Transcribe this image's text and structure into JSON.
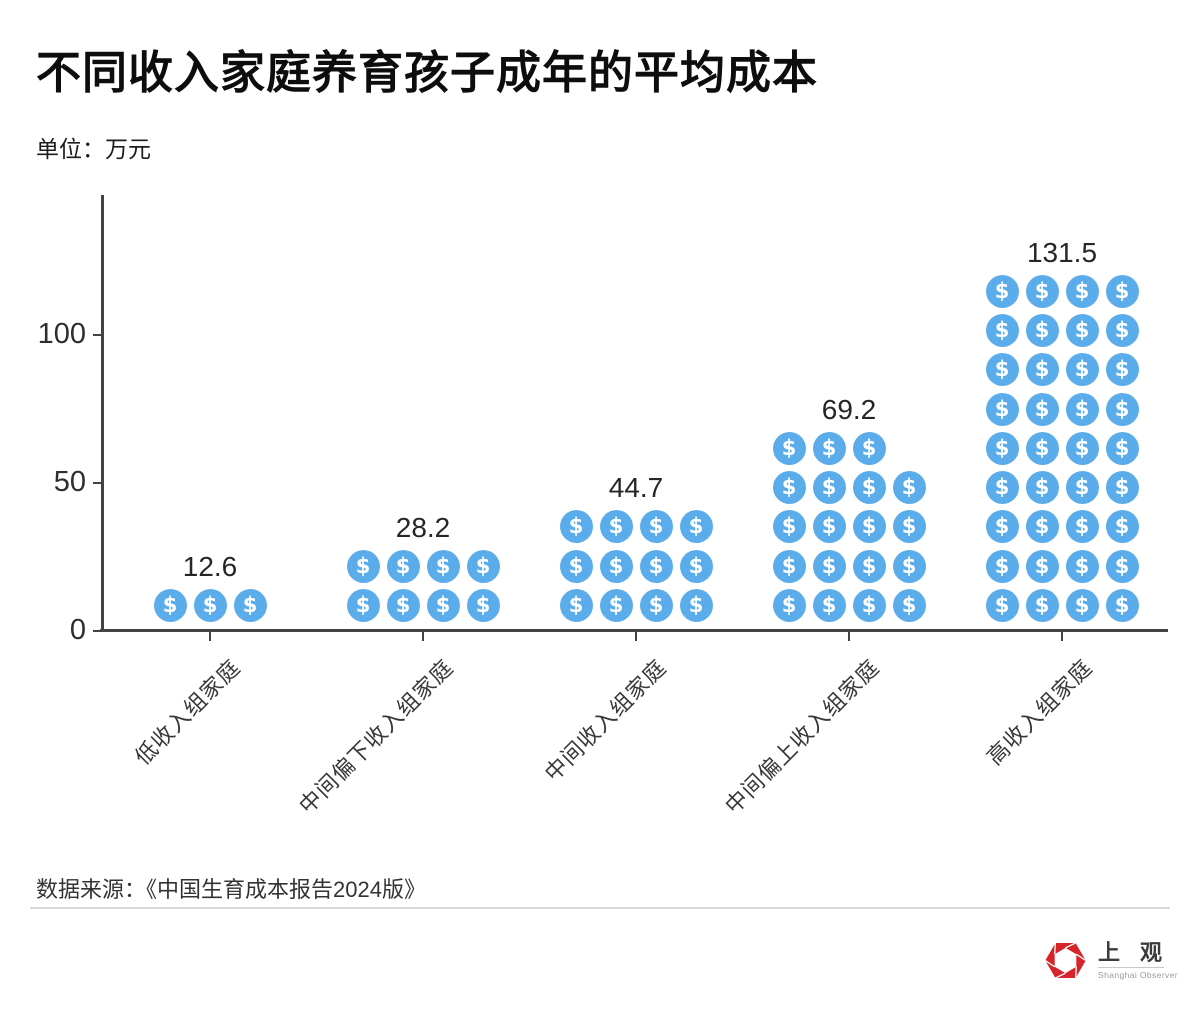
{
  "header": {
    "title": "不同收入家庭养育孩子成年的平均成本",
    "unit_label": "单位：万元"
  },
  "footer": {
    "source_label": "数据来源：《中国生育成本报告2024版》",
    "logo": {
      "name": "上观",
      "subtitle": "Shanghai Observer",
      "brand_color": "#D5252B"
    }
  },
  "chart_data": {
    "type": "bar",
    "variant": "pictogram",
    "title": "不同收入家庭养育孩子成年的平均成本",
    "unit": "万元",
    "categories": [
      "低收入组家庭",
      "中间偏下收入组家庭",
      "中间收入组家庭",
      "中间偏上收入组家庭",
      "高收入组家庭"
    ],
    "values": [
      12.6,
      28.2,
      44.7,
      69.2,
      131.5
    ],
    "value_labels": [
      "12.6",
      "28.2",
      "44.7",
      "69.2",
      "131.5"
    ],
    "icon": "dollar-coin-icon",
    "icon_unicode": "$",
    "icon_color": "#5BACEA",
    "icon_counts": [
      3,
      8,
      12,
      19,
      36
    ],
    "icon_rows_top_to_bottom": [
      [
        3
      ],
      [
        4,
        4
      ],
      [
        4,
        4,
        4
      ],
      [
        3,
        4,
        4,
        4,
        4
      ],
      [
        4,
        4,
        4,
        4,
        4,
        4,
        4,
        4,
        4
      ]
    ],
    "yticks": [
      0,
      50,
      100
    ],
    "ylim": [
      0,
      147
    ],
    "xlabel": "",
    "ylabel": "",
    "grid": false,
    "legend": false,
    "source": "《中国生育成本报告2024版》"
  }
}
